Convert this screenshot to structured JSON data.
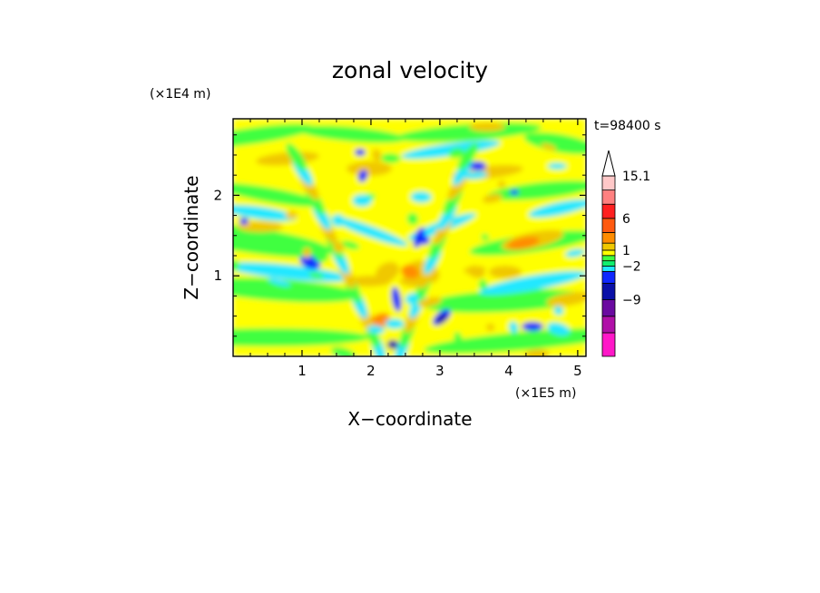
{
  "chart_data": {
    "type": "heatmap",
    "title": "zonal velocity",
    "xlabel": "X−coordinate",
    "ylabel": "Z−coordinate",
    "x_scale_label": "(×1E5 m)",
    "y_scale_label": "(×1E4 m)",
    "time_label": "t=98400 s",
    "xlim": [
      0,
      5.12
    ],
    "ylim": [
      0,
      2.95
    ],
    "x_ticks": [
      1,
      2,
      3,
      4,
      5
    ],
    "x_tick_labels": [
      "1",
      "2",
      "3",
      "4",
      "5"
    ],
    "y_ticks": [
      1,
      2
    ],
    "y_tick_labels": [
      "1",
      "2"
    ],
    "colorbar": {
      "levels": [
        -15,
        -12,
        -9,
        -6,
        -4,
        -2,
        -1,
        0,
        1,
        2,
        4,
        6,
        9,
        12,
        15.1
      ],
      "labeled": [
        {
          "value": 15.1,
          "text": "15.1"
        },
        {
          "value": 6,
          "text": "6"
        },
        {
          "value": 1,
          "text": "1"
        },
        {
          "value": -2,
          "text": "−2"
        },
        {
          "value": -9,
          "text": "−9"
        }
      ],
      "colors": [
        "#ff18c8",
        "#b010a8",
        "#6a0aa0",
        "#0a10a8",
        "#1028ff",
        "#20e8ff",
        "#10f070",
        "#40ff40",
        "#ffff00",
        "#f0c800",
        "#ff8c00",
        "#ff5a10",
        "#ff2020",
        "#ff8080",
        "#ffc8c8"
      ],
      "extend_max": true
    }
  }
}
